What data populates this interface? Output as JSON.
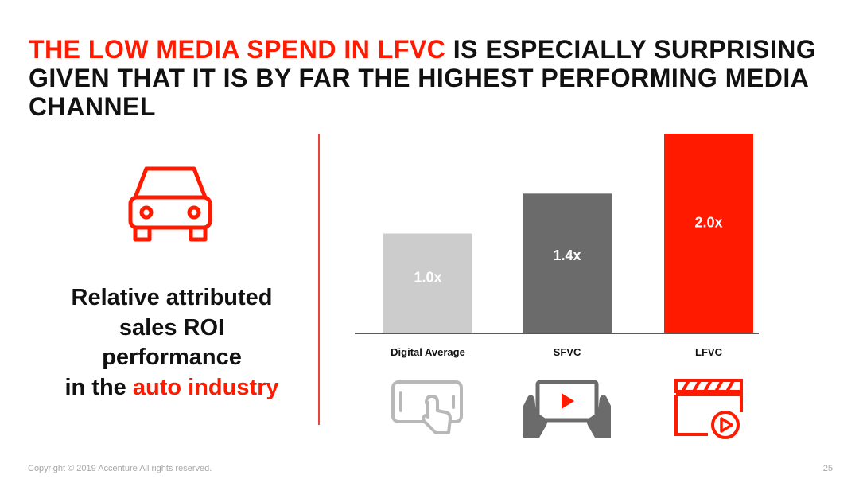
{
  "title": {
    "highlight": "THE LOW MEDIA SPEND IN LFVC",
    "rest": " IS ESPECIALLY SURPRISING GIVEN THAT IT IS BY FAR THE HIGHEST PERFORMING MEDIA CHANNEL"
  },
  "left_panel": {
    "line1": "Relative attributed",
    "line2": "sales ROI",
    "line3": "performance",
    "line4_prefix": "in the ",
    "line4_highlight": "auto industry",
    "icon": "car-icon"
  },
  "chart_data": {
    "type": "bar",
    "title": "",
    "xlabel": "",
    "ylabel": "",
    "ylim": [
      0,
      2.0
    ],
    "grid": false,
    "categories": [
      "Digital Average",
      "SFVC",
      "LFVC"
    ],
    "values": [
      1.0,
      1.4,
      2.0
    ],
    "data_labels": [
      "1.0x",
      "1.4x",
      "2.0x"
    ],
    "colors": [
      "#cccccc",
      "#6b6b6b",
      "#ff1a00"
    ],
    "icons": [
      "tablet-touch-icon",
      "video-player-icon",
      "clapperboard-play-icon"
    ]
  },
  "colors": {
    "accent": "#ff1a00",
    "text": "#111111",
    "muted": "#a8a8a8",
    "divider": "#e8443a"
  },
  "footer": {
    "copyright": "Copyright © 2019 Accenture All rights reserved.",
    "page_number": "25"
  }
}
